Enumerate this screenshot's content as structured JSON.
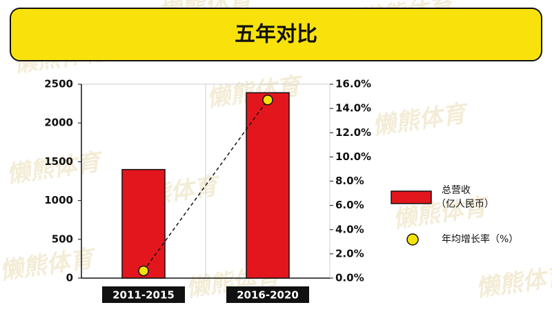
{
  "watermark": "懒熊体育",
  "chart_data": {
    "type": "bar",
    "title": "五年对比",
    "categories": [
      "2011-2015",
      "2016-2020"
    ],
    "series": [
      {
        "name": "总营收",
        "unit": "（亿人民币）",
        "type": "bar",
        "color": "#e3161e",
        "values": [
          1400,
          2390
        ]
      },
      {
        "name": "年均增长率（%）",
        "type": "line",
        "axis": "y2",
        "color": "#f5e10a",
        "values": [
          0.6,
          14.7
        ]
      }
    ],
    "ylim": [
      0,
      2500
    ],
    "yticks": [
      0,
      500,
      1000,
      1500,
      2000,
      2500
    ],
    "y2lim": [
      0,
      16
    ],
    "y2ticks": [
      {
        "value": 0,
        "label": "0.0%"
      },
      {
        "value": 2,
        "label": "2.0%"
      },
      {
        "value": 4,
        "label": "4.0%"
      },
      {
        "value": 6,
        "label": "6.0%"
      },
      {
        "value": 8,
        "label": "8.0%"
      },
      {
        "value": 10,
        "label": "10.0%"
      },
      {
        "value": 12,
        "label": "12.0%"
      },
      {
        "value": 14,
        "label": "14.0%"
      },
      {
        "value": 16,
        "label": "16.0%"
      }
    ],
    "grid": true
  }
}
